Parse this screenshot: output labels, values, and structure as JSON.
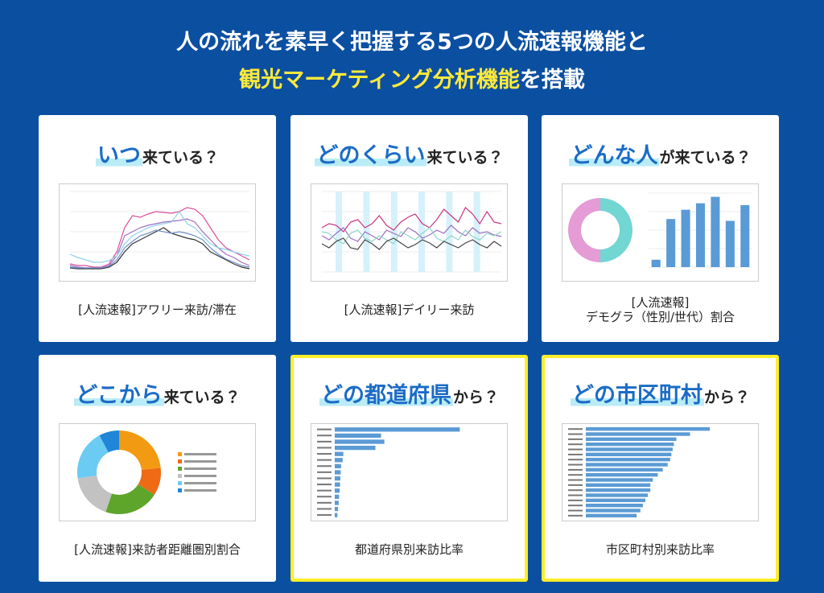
{
  "header": {
    "line1": "人の流れを素早く把握する5つの人流速報機能と",
    "line2_highlight": "観光マーケティング分析機能",
    "line2_rest": "を搭載"
  },
  "cards": [
    {
      "title_highlight": "いつ",
      "title_rest": "来ている？",
      "caption": [
        "[人流速報]アワリー来訪/滞在"
      ],
      "featured": false,
      "thumbnail": {
        "type": "line",
        "ylim": [
          0,
          100
        ],
        "series": [
          {
            "color": "#d94f9a",
            "values": [
              10,
              8,
              8,
              6,
              6,
              10,
              25,
              55,
              70,
              68,
              72,
              75,
              74,
              73,
              75,
              80,
              78,
              70,
              55,
              40,
              30,
              25,
              20,
              15
            ]
          },
          {
            "color": "#9b6fc4",
            "values": [
              8,
              6,
              5,
              5,
              5,
              8,
              20,
              45,
              50,
              55,
              58,
              60,
              62,
              63,
              64,
              66,
              62,
              50,
              40,
              30,
              22,
              18,
              12,
              8
            ]
          },
          {
            "color": "#8fd0e8",
            "values": [
              22,
              18,
              15,
              12,
              12,
              14,
              20,
              35,
              45,
              50,
              55,
              58,
              60,
              62,
              75,
              60,
              55,
              45,
              35,
              30,
              28,
              25,
              22,
              20
            ]
          },
          {
            "color": "#333333",
            "values": [
              5,
              4,
              4,
              4,
              4,
              6,
              12,
              25,
              35,
              40,
              45,
              50,
              55,
              48,
              45,
              42,
              40,
              35,
              25,
              20,
              15,
              10,
              6,
              4
            ]
          },
          {
            "color": "#6f8fc8",
            "values": [
              6,
              5,
              5,
              5,
              5,
              7,
              15,
              30,
              38,
              45,
              48,
              52,
              50,
              48,
              50,
              48,
              45,
              40,
              30,
              22,
              16,
              12,
              8,
              6
            ]
          }
        ]
      }
    },
    {
      "title_highlight": "どのくらい",
      "title_rest": "来ている？",
      "caption": [
        "[人流速報]デイリー来訪"
      ],
      "featured": false,
      "thumbnail": {
        "type": "line",
        "ylim": [
          0,
          100
        ],
        "series": [
          {
            "color": "#c9357f",
            "values": [
              55,
              60,
              58,
              50,
              62,
              65,
              55,
              60,
              70,
              58,
              52,
              62,
              68,
              72,
              60,
              55,
              65,
              78,
              70,
              62,
              80,
              72,
              60,
              75,
              62,
              60
            ]
          },
          {
            "color": "#9b6fc4",
            "values": [
              45,
              40,
              48,
              55,
              42,
              38,
              50,
              45,
              40,
              52,
              48,
              44,
              55,
              50,
              42,
              46,
              52,
              48,
              58,
              50,
              45,
              55,
              48,
              50,
              46,
              44
            ]
          },
          {
            "color": "#8fd6c8",
            "values": [
              50,
              48,
              40,
              35,
              48,
              52,
              42,
              38,
              45,
              40,
              35,
              50,
              45,
              40,
              48,
              55,
              42,
              38,
              45,
              40,
              52,
              44,
              40,
              48,
              45,
              50
            ]
          },
          {
            "color": "#444444",
            "values": [
              35,
              30,
              38,
              42,
              30,
              28,
              40,
              35,
              28,
              38,
              42,
              36,
              30,
              34,
              40,
              36,
              30,
              38,
              34,
              30,
              36,
              40,
              34,
              30,
              38,
              32
            ]
          }
        ]
      }
    },
    {
      "title_highlight": "どんな人",
      "title_rest": "が来ている？",
      "caption": [
        "[人流速報]",
        "デモグラ（性別/世代）割合"
      ],
      "featured": false,
      "thumbnail": {
        "type": "donut-bar",
        "slices": [
          {
            "color": "#72d6d2",
            "value": 50
          },
          {
            "color": "#e59bd5",
            "value": 50
          }
        ],
        "bar_color": "#5b9bd5",
        "bars": [
          8,
          52,
          62,
          69,
          76,
          50,
          67
        ],
        "ylim": [
          0,
          80
        ]
      }
    },
    {
      "title_highlight": "どこから",
      "title_rest": "来ている？",
      "caption": [
        "[人流速報]来訪者距離圏別割合"
      ],
      "featured": false,
      "thumbnail": {
        "type": "donut",
        "slices": [
          {
            "color": "#f39a13",
            "value": 23.3
          },
          {
            "color": "#ee6a14",
            "value": 10.7
          },
          {
            "color": "#5ea52c",
            "value": 21.2
          },
          {
            "color": "#c2c2c2",
            "value": 17.5
          },
          {
            "color": "#6ccbf3",
            "value": 19.5
          },
          {
            "color": "#1f86d8",
            "value": 7.8
          }
        ]
      }
    },
    {
      "title_highlight": "どの都道府県",
      "title_rest": "から？",
      "caption": [
        "都道府県別来訪比率"
      ],
      "featured": true,
      "thumbnail": {
        "type": "hbar",
        "color": "#5b9bd5",
        "xlim": [
          0,
          45
        ],
        "values": [
          37.8,
          14.0,
          15.0,
          12.3,
          2.6,
          2.4,
          1.9,
          1.8,
          1.7,
          1.6,
          1.5,
          1.3,
          1.2,
          1.0,
          0.8
        ]
      }
    },
    {
      "title_highlight": "どの市区町村",
      "title_rest": "から？",
      "caption": [
        "市区町村別来訪比率"
      ],
      "featured": true,
      "thumbnail": {
        "type": "hbar",
        "color": "#5b9bd5",
        "xlim": [
          0,
          120
        ],
        "values": [
          100,
          84,
          73,
          71,
          70,
          69,
          68,
          66,
          62,
          58,
          54,
          52,
          52,
          50,
          48,
          46,
          44,
          41
        ]
      }
    }
  ]
}
